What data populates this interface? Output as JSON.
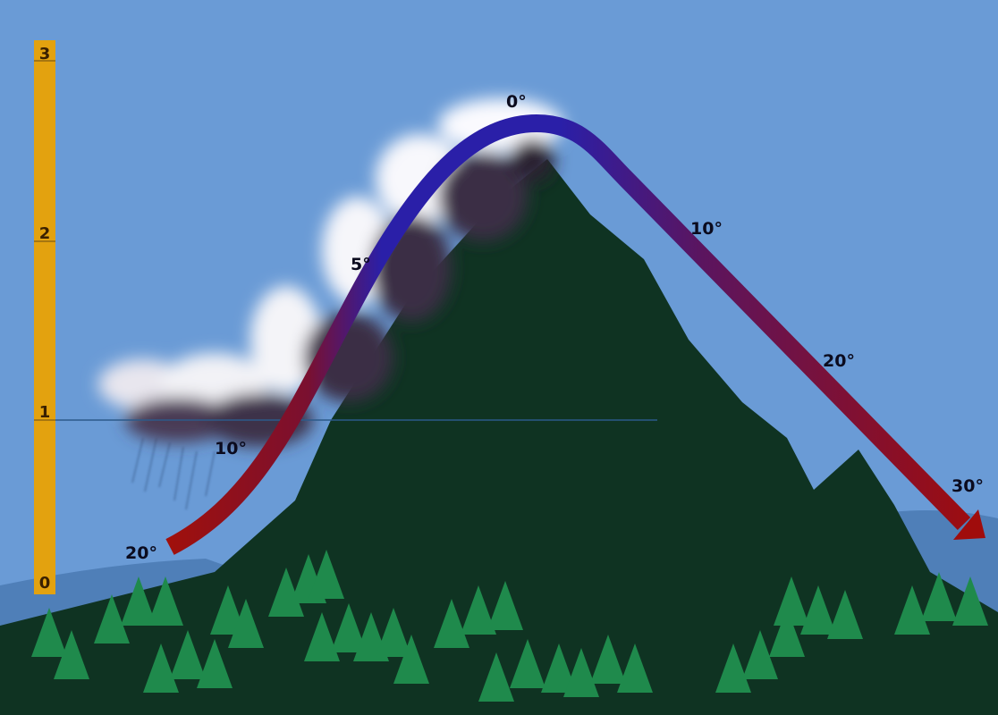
{
  "scale": {
    "ticks": [
      "0",
      "1",
      "2",
      "3"
    ],
    "color": "#e3a20f"
  },
  "temperatures": {
    "windward_base": "20°",
    "condensation_level": "10°",
    "windward_mid": "5°",
    "summit": "0°",
    "leeward_upper": "10°",
    "leeward_mid": "20°",
    "leeward_base": "30°"
  },
  "colors": {
    "sky": "#6a9bd6",
    "mountain": "#0f3322",
    "trees": "#1f8a4c",
    "warm": "#9a0f0f",
    "cold": "#2a1fa8"
  }
}
